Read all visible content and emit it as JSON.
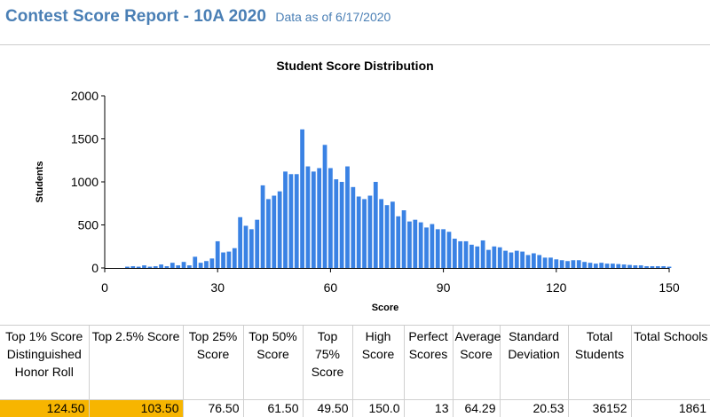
{
  "header": {
    "title": "Contest Score Report -  10A 2020",
    "as_of": "Data as of 6/17/2020"
  },
  "colors": {
    "bar": "#3a82e4",
    "title": "#4a7fb5",
    "highlight": "#f7b500"
  },
  "chart_data": {
    "type": "bar",
    "title": "Student Score Distribution",
    "xlabel": "Score",
    "ylabel": "Students",
    "xlim": [
      0,
      150
    ],
    "ylim": [
      0,
      2000
    ],
    "xticks": [
      0,
      30,
      60,
      90,
      120,
      150
    ],
    "yticks": [
      0,
      500,
      1000,
      1500,
      2000
    ],
    "grid": false,
    "bin_width": 1.5,
    "x": [
      6,
      7.5,
      9,
      10.5,
      12,
      13.5,
      15,
      16.5,
      18,
      19.5,
      21,
      22.5,
      24,
      25.5,
      27,
      28.5,
      30,
      31.5,
      33,
      34.5,
      36,
      37.5,
      39,
      40.5,
      42,
      43.5,
      45,
      46.5,
      48,
      49.5,
      51,
      52.5,
      54,
      55.5,
      57,
      58.5,
      60,
      61.5,
      63,
      64.5,
      66,
      67.5,
      69,
      70.5,
      72,
      73.5,
      75,
      76.5,
      78,
      79.5,
      81,
      82.5,
      84,
      85.5,
      87,
      88.5,
      90,
      91.5,
      93,
      94.5,
      96,
      97.5,
      99,
      100.5,
      102,
      103.5,
      105,
      106.5,
      108,
      109.5,
      111,
      112.5,
      114,
      115.5,
      117,
      118.5,
      120,
      121.5,
      123,
      124.5,
      126,
      127.5,
      129,
      130.5,
      132,
      133.5,
      135,
      136.5,
      138,
      139.5,
      141,
      142.5,
      144,
      145.5,
      147,
      148.5,
      150
    ],
    "values": [
      15,
      20,
      15,
      30,
      15,
      20,
      40,
      20,
      60,
      30,
      70,
      30,
      130,
      60,
      80,
      110,
      310,
      180,
      190,
      230,
      590,
      490,
      450,
      560,
      960,
      800,
      840,
      890,
      1120,
      1090,
      1090,
      1610,
      1180,
      1120,
      1160,
      1430,
      1160,
      1030,
      1000,
      1180,
      940,
      830,
      800,
      840,
      1000,
      800,
      730,
      770,
      600,
      670,
      540,
      560,
      530,
      470,
      510,
      450,
      450,
      420,
      340,
      310,
      310,
      270,
      250,
      320,
      210,
      250,
      240,
      200,
      180,
      200,
      190,
      150,
      170,
      150,
      120,
      120,
      100,
      90,
      80,
      90,
      90,
      70,
      60,
      50,
      60,
      50,
      50,
      45,
      40,
      35,
      30,
      30,
      20,
      20,
      20,
      20,
      15
    ]
  },
  "stats": {
    "headers": [
      "Top 1% Score Distinguished Honor Roll",
      "Top 2.5% Score",
      "Top 25% Score",
      "Top 50% Score",
      "Top 75% Score",
      "High Score",
      "Perfect Scores",
      "Average Score",
      "Standard Deviation",
      "Total Students",
      "Total Schools"
    ],
    "values": [
      "124.50",
      "103.50",
      "76.50",
      "61.50",
      "49.50",
      "150.0",
      "13",
      "64.29",
      "20.53",
      "36152",
      "1861"
    ]
  }
}
